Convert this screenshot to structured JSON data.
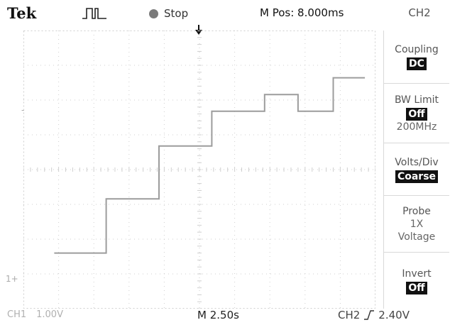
{
  "header": {
    "brand": "Tek",
    "trigger_type_icon": "pulse-icon",
    "run_state": "Stop",
    "horizontal_position": "M Pos: 8.000ms",
    "channel": "CH2"
  },
  "menu": {
    "items": [
      {
        "label": "Coupling",
        "value": "DC"
      },
      {
        "label": "BW Limit",
        "value": "Off",
        "sub": "200MHz"
      },
      {
        "label": "Volts/Div",
        "value": "Coarse"
      },
      {
        "label": "Probe",
        "line2": "1X",
        "line3": "Voltage"
      },
      {
        "label": "Invert",
        "value": "Off"
      }
    ]
  },
  "screen": {
    "ch1_marker": "1+",
    "trigger_level_marker": "-"
  },
  "status": {
    "ch1_label": "CH1",
    "ch1_scale": "1.00V",
    "timebase": "M 2.50s",
    "trigger_channel": "CH2",
    "trigger_edge_icon": "rising-edge-icon",
    "trigger_level": "2.40V"
  },
  "chart_data": {
    "type": "line",
    "x_unit": "s",
    "y_unit": "V",
    "points": [
      [
        -8.25,
        0.0
      ],
      [
        -5.3,
        0.0
      ],
      [
        -5.3,
        1.95
      ],
      [
        -2.3,
        1.95
      ],
      [
        -2.3,
        3.85
      ],
      [
        0.7,
        3.85
      ],
      [
        0.7,
        5.1
      ],
      [
        3.7,
        5.1
      ],
      [
        3.7,
        5.7
      ],
      [
        5.6,
        5.7
      ],
      [
        5.6,
        5.1
      ],
      [
        7.6,
        5.1
      ],
      [
        7.6,
        6.3
      ],
      [
        9.4,
        6.3
      ]
    ],
    "grid": true,
    "xlim": [
      -10,
      10
    ],
    "ylim": [
      -2.0,
      8.0
    ]
  },
  "colors": {
    "trace": "#9c9c9c",
    "grid": "#cfcfcf",
    "badge_bg": "#111111"
  }
}
